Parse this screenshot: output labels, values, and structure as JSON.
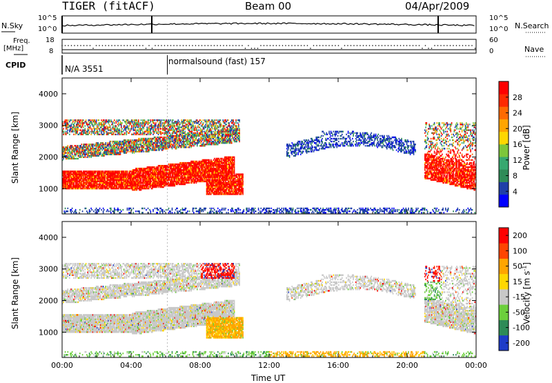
{
  "header": {
    "radar": "TIGER (fitACF)",
    "beam": "Beam 00",
    "date": "04/Apr/2009"
  },
  "status_panels": {
    "nsky_label": "N.Sky",
    "nsearch_label": "N.Search",
    "nsky_ticks": [
      "10^5",
      "10^0"
    ],
    "nsearch_ticks": [
      "10^5",
      "10^0"
    ],
    "freq_label_1": "Freq.",
    "freq_label_2": "[MHz]",
    "freq_ticks": [
      "18",
      "8"
    ],
    "nave_label": "Nave",
    "nave_ticks": [
      "60",
      "0"
    ],
    "cpid_label": "CPID",
    "cpid_segments": [
      {
        "text": "N/A 3551",
        "start_hour": 0
      },
      {
        "text": "normalsound (fast) 157",
        "start_hour": 6.1
      }
    ]
  },
  "chart_data": [
    {
      "type": "heatmap",
      "name": "power",
      "ylabel": "Slant Range [km]",
      "xlabel": "",
      "ylim": [
        200,
        4500
      ],
      "yticks": [
        1000,
        2000,
        3000,
        4000
      ],
      "xlim_hours": [
        0,
        24
      ],
      "colorbar": {
        "label": "Power [dB]",
        "ticks": [
          "4",
          "8",
          "12",
          "16",
          "20",
          "24",
          "28"
        ],
        "colors": [
          "#0000ff",
          "#1f3fa8",
          "#2e8b57",
          "#37a86f",
          "#7dc63a",
          "#ffd700",
          "#ffa500",
          "#ff6a00",
          "#ff2a00",
          "#ff0000"
        ]
      },
      "features": [
        {
          "desc": "strong band",
          "hours": [
            0,
            10
          ],
          "range_km": [
            1000,
            1800
          ],
          "level": "high"
        },
        {
          "desc": "upper bands",
          "hours": [
            0,
            10.3
          ],
          "range_km": [
            1900,
            3300
          ],
          "level": "mixed"
        },
        {
          "desc": "patch",
          "hours": [
            8.5,
            10.5
          ],
          "range_km": [
            800,
            1400
          ],
          "level": "high"
        },
        {
          "desc": "weak night echoes",
          "hours": [
            14,
            20.5
          ],
          "range_km": [
            1700,
            2700
          ],
          "level": "low"
        },
        {
          "desc": "evening band",
          "hours": [
            21,
            24
          ],
          "range_km": [
            1000,
            3200
          ],
          "level": "high"
        }
      ]
    },
    {
      "type": "heatmap",
      "name": "velocity",
      "ylabel": "Slant Range [km]",
      "xlabel": "Time UT",
      "ylim": [
        200,
        4500
      ],
      "yticks": [
        1000,
        2000,
        3000,
        4000
      ],
      "xticks": [
        "00:00",
        "04:00",
        "08:00",
        "12:00",
        "16:00",
        "20:00",
        "00:00"
      ],
      "colorbar": {
        "label_main": "Velocity [m s",
        "label_sup": "-1",
        "label_end": "]",
        "ticks": [
          "200",
          "100",
          "50",
          "15",
          "-15",
          "-50",
          "-100",
          "-200"
        ],
        "colors": [
          "#1e3cc8",
          "#2e8b57",
          "#6ccf3c",
          "#c8c8c8",
          "#ffd700",
          "#ffa500",
          "#ff4500",
          "#ff0000"
        ]
      }
    }
  ]
}
